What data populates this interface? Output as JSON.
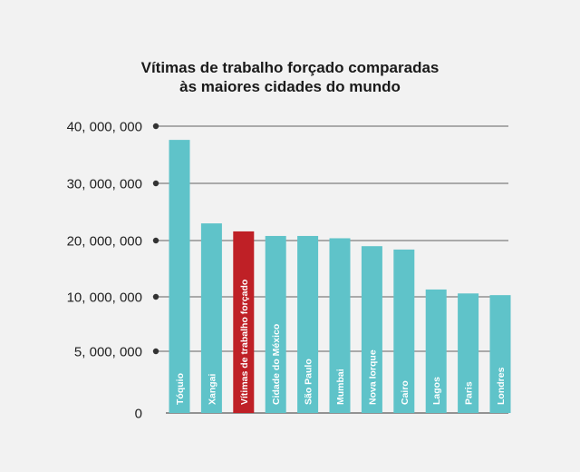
{
  "chart_data": {
    "type": "bar",
    "title_line1": "Vítimas de trabalho forçado comparadas",
    "title_line2": "às maiores cidades do mundo",
    "xlabel": "",
    "ylabel": "",
    "ylim": [
      0,
      40000000
    ],
    "grid": true,
    "legend": "none",
    "y_ticks": [
      {
        "value": 40000000,
        "label": "40, 000, 000"
      },
      {
        "value": 30000000,
        "label": "30, 000, 000"
      },
      {
        "value": 20000000,
        "label": "20, 000, 000"
      },
      {
        "value": 10000000,
        "label": "10, 000, 000"
      },
      {
        "value": 5000000,
        "label": "5, 000, 000"
      },
      {
        "value": 0,
        "label": "0"
      }
    ],
    "categories": [
      "Tóquio",
      "Xangai",
      "Vítimas de trabalho forçado",
      "Cidade do México",
      "São Paulo",
      "Mumbai",
      "Nova Iorque",
      "Cairo",
      "Lagos",
      "Paris",
      "Londres"
    ],
    "values": [
      37600000,
      23000000,
      21600000,
      20800000,
      20800000,
      20400000,
      19000000,
      18400000,
      11300000,
      10600000,
      10300000
    ],
    "highlight_index": 2,
    "colors": {
      "bar": "#5fc3c9",
      "highlight": "#bf2026",
      "grid": "#333333",
      "axis": "#333333",
      "bar_label": "#ffffff",
      "tick_label": "#222222"
    }
  }
}
